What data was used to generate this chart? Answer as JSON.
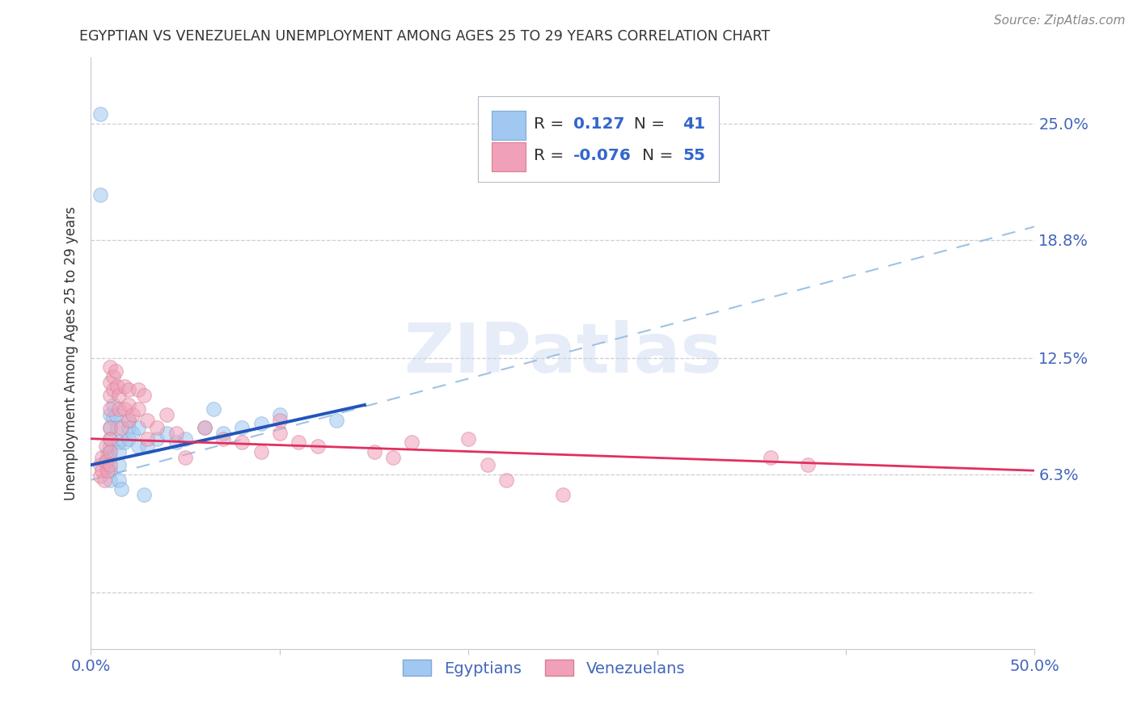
{
  "title": "EGYPTIAN VS VENEZUELAN UNEMPLOYMENT AMONG AGES 25 TO 29 YEARS CORRELATION CHART",
  "source": "Source: ZipAtlas.com",
  "ylabel": "Unemployment Among Ages 25 to 29 years",
  "xlim": [
    0.0,
    0.5
  ],
  "ylim": [
    -0.03,
    0.285
  ],
  "yticks": [
    0.0,
    0.063,
    0.125,
    0.188,
    0.25
  ],
  "ytick_labels": [
    "",
    "6.3%",
    "12.5%",
    "18.8%",
    "25.0%"
  ],
  "grid_color": "#c8c8d0",
  "background_color": "#ffffff",
  "watermark_text": "ZIPatlas",
  "legend_R_egyptian": "0.127",
  "legend_N_egyptian": "41",
  "legend_R_venezuelan": "-0.076",
  "legend_N_venezuelan": "55",
  "egyptian_color": "#a0c8f0",
  "venezuelan_color": "#f0a0b8",
  "egyptian_scatter_edge": "#80a8d8",
  "venezuelan_scatter_edge": "#d88090",
  "egyptian_line_color": "#2255bb",
  "venezuelan_line_color": "#e03060",
  "dash_line_color": "#90b8e0",
  "title_color": "#333333",
  "axis_label_color": "#333333",
  "right_tick_color": "#4466bb",
  "bottom_tick_color": "#4466bb",
  "legend_text_dark": "#333333",
  "legend_text_blue": "#3366cc",
  "egyptians_x": [
    0.005,
    0.005,
    0.008,
    0.008,
    0.009,
    0.01,
    0.01,
    0.01,
    0.01,
    0.01,
    0.01,
    0.01,
    0.012,
    0.012,
    0.013,
    0.014,
    0.015,
    0.015,
    0.015,
    0.015,
    0.016,
    0.018,
    0.02,
    0.02,
    0.02,
    0.022,
    0.025,
    0.025,
    0.028,
    0.03,
    0.035,
    0.04,
    0.045,
    0.05,
    0.06,
    0.065,
    0.07,
    0.08,
    0.09,
    0.1,
    0.13
  ],
  "egyptians_y": [
    0.255,
    0.212,
    0.07,
    0.068,
    0.074,
    0.095,
    0.088,
    0.082,
    0.078,
    0.072,
    0.065,
    0.06,
    0.1,
    0.093,
    0.095,
    0.088,
    0.08,
    0.075,
    0.068,
    0.06,
    0.055,
    0.08,
    0.092,
    0.088,
    0.082,
    0.085,
    0.088,
    0.078,
    0.052,
    0.078,
    0.082,
    0.085,
    0.08,
    0.082,
    0.088,
    0.098,
    0.085,
    0.088,
    0.09,
    0.095,
    0.092
  ],
  "venezuelans_x": [
    0.005,
    0.005,
    0.006,
    0.006,
    0.007,
    0.008,
    0.008,
    0.009,
    0.01,
    0.01,
    0.01,
    0.01,
    0.01,
    0.01,
    0.01,
    0.01,
    0.012,
    0.012,
    0.013,
    0.014,
    0.015,
    0.015,
    0.016,
    0.018,
    0.018,
    0.02,
    0.02,
    0.02,
    0.022,
    0.025,
    0.025,
    0.028,
    0.03,
    0.03,
    0.035,
    0.04,
    0.045,
    0.05,
    0.06,
    0.07,
    0.08,
    0.09,
    0.1,
    0.1,
    0.11,
    0.12,
    0.15,
    0.16,
    0.17,
    0.2,
    0.21,
    0.22,
    0.25,
    0.36,
    0.38
  ],
  "venezuelans_y": [
    0.068,
    0.062,
    0.072,
    0.065,
    0.06,
    0.078,
    0.07,
    0.065,
    0.12,
    0.112,
    0.105,
    0.098,
    0.088,
    0.082,
    0.075,
    0.068,
    0.115,
    0.108,
    0.118,
    0.11,
    0.105,
    0.098,
    0.088,
    0.11,
    0.098,
    0.108,
    0.1,
    0.092,
    0.095,
    0.108,
    0.098,
    0.105,
    0.092,
    0.082,
    0.088,
    0.095,
    0.085,
    0.072,
    0.088,
    0.082,
    0.08,
    0.075,
    0.092,
    0.085,
    0.08,
    0.078,
    0.075,
    0.072,
    0.08,
    0.082,
    0.068,
    0.06,
    0.052,
    0.072,
    0.068
  ],
  "egyptian_line_x": [
    0.0,
    0.145
  ],
  "egyptian_line_y": [
    0.068,
    0.1
  ],
  "venezuelan_line_x": [
    0.0,
    0.5
  ],
  "venezuelan_line_y": [
    0.082,
    0.065
  ],
  "dash_line_x": [
    0.0,
    0.5
  ],
  "dash_line_y": [
    0.06,
    0.195
  ]
}
